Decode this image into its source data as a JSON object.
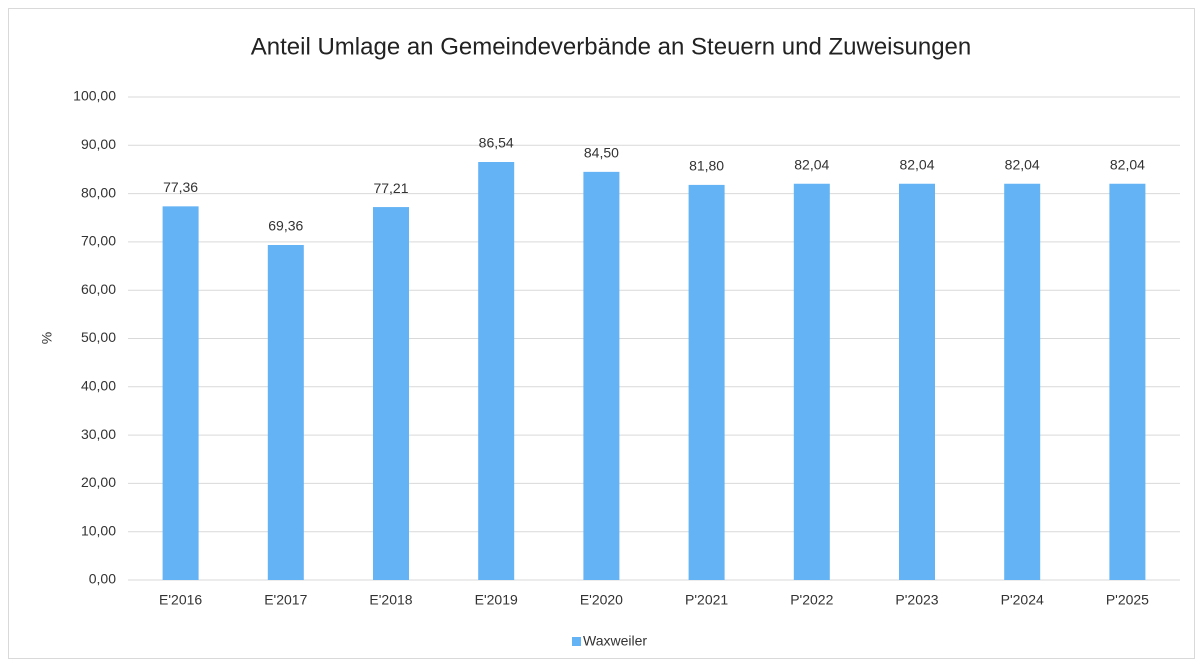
{
  "chart_data": {
    "type": "bar",
    "title": "Anteil Umlage an Gemeindeverbände an Steuern und Zuweisungen",
    "y_label": "%",
    "categories": [
      "E'2016",
      "E'2017",
      "E'2018",
      "E'2019",
      "E'2020",
      "P'2021",
      "P'2022",
      "P'2023",
      "P'2024",
      "P'2025"
    ],
    "series": [
      {
        "name": "Waxweiler",
        "color": "#63b3f5",
        "values": [
          77.36,
          69.36,
          77.21,
          86.54,
          84.5,
          81.8,
          82.04,
          82.04,
          82.04,
          82.04
        ],
        "value_labels": [
          "77,36",
          "69,36",
          "77,21",
          "86,54",
          "84,50",
          "81,80",
          "82,04",
          "82,04",
          "82,04",
          "82,04"
        ]
      }
    ],
    "ylim": [
      0,
      100
    ],
    "yticks": [
      {
        "value": 0,
        "label": "0,00"
      },
      {
        "value": 10,
        "label": "10,00"
      },
      {
        "value": 20,
        "label": "20,00"
      },
      {
        "value": 30,
        "label": "30,00"
      },
      {
        "value": 40,
        "label": "40,00"
      },
      {
        "value": 50,
        "label": "50,00"
      },
      {
        "value": 60,
        "label": "60,00"
      },
      {
        "value": 70,
        "label": "70,00"
      },
      {
        "value": 80,
        "label": "80,00"
      },
      {
        "value": 90,
        "label": "90,00"
      },
      {
        "value": 100,
        "label": "100,00"
      }
    ],
    "grid": true,
    "legend": "bottom"
  }
}
